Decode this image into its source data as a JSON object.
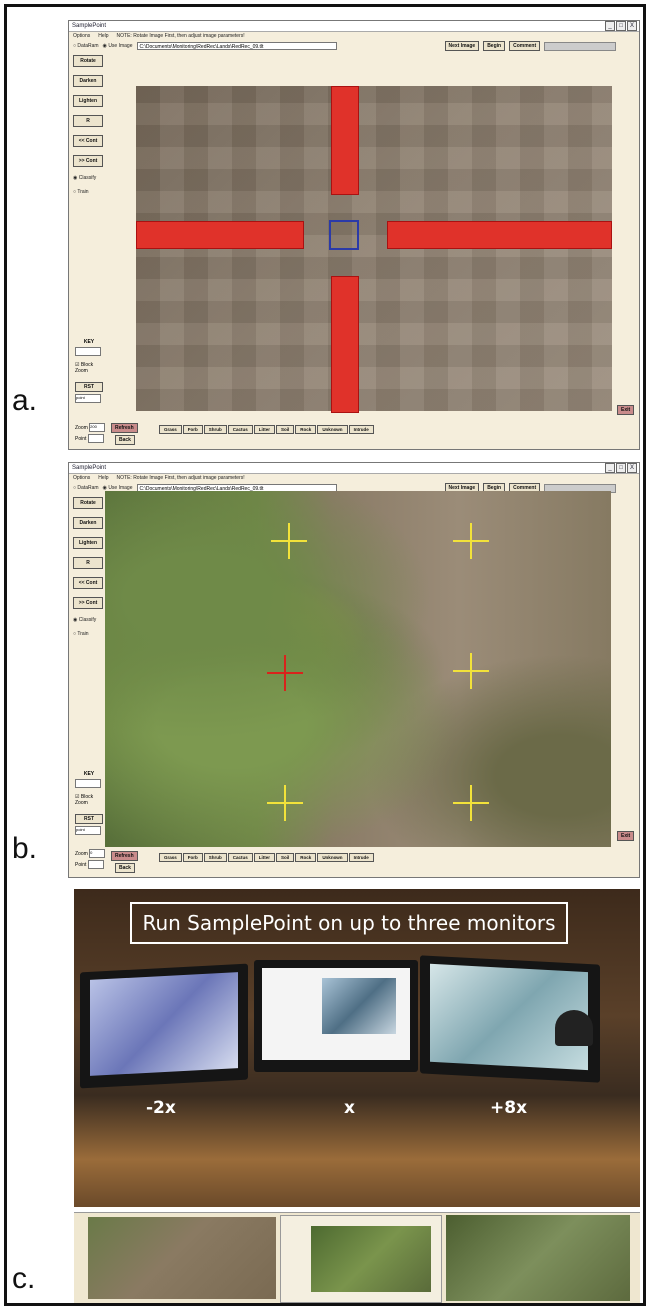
{
  "panel_labels": {
    "a": "a.",
    "b": "b.",
    "c": "c."
  },
  "window": {
    "title": "SamplePoint",
    "menu": [
      "Options",
      "Help",
      "NOTE: Rotate Image First, then adjust image parameters!"
    ],
    "source_dataram": "DataRam",
    "source_use_image": "Use Image",
    "path": "C:\\Documents\\Monitoring\\RedRec\\Lands\\RedRec_09.tlt",
    "next_image": "Next Image",
    "begin": "Begin",
    "comment": "Comment",
    "controls": {
      "close": "X",
      "minimize": "_",
      "maximize": "□"
    },
    "sidebar": [
      "Rotate",
      "Darken",
      "Lighten",
      "R",
      "<< Cont",
      ">> Cont"
    ],
    "classify": "Classify",
    "train": "Train",
    "key_label": "KEY",
    "block_zoom": "Block Zoom",
    "rst": "RST",
    "point_input": "point",
    "zoom_label": "Zoom",
    "zoom_value_a": "200",
    "zoom_value_b": "0",
    "point_label": "Point",
    "refresh": "Refresh",
    "back": "Back",
    "categories": [
      "Grass",
      "Forb",
      "Shrub",
      "Cactus",
      "Litter",
      "Soil",
      "Rock",
      "Unknown",
      "Intrude"
    ],
    "exit": "Exit"
  },
  "photo": {
    "banner": "Run SamplePoint on up to three monitors",
    "monitor_labels": [
      "-2x",
      "x",
      "+8x"
    ]
  }
}
